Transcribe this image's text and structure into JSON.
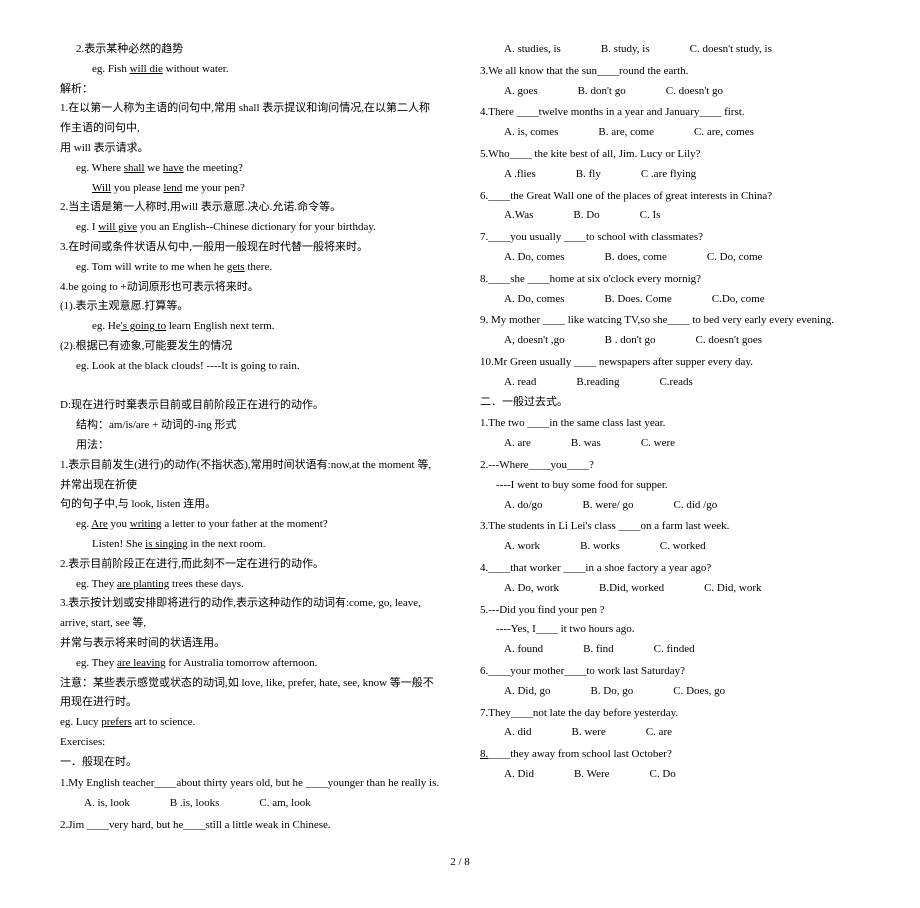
{
  "left": {
    "l1": "2.表示某种必然的趋势",
    "l2a": "eg. Fish ",
    "l2b": "will die",
    "l2c": " without water.",
    "l3": "解析：",
    "l4": "1.在以第一人称为主语的问句中,常用 shall 表示提议和询问情况,在以第二人称作主语的问句中,",
    "l5": "用 will 表示请求。",
    "l6a": "eg. Where ",
    "l6b": "shall",
    "l6c": " we ",
    "l6d": "have",
    "l6e": " the meeting?",
    "l7a": "Will",
    "l7b": " you please ",
    "l7c": "lend",
    "l7d": " me your pen?",
    "l8": "2.当主语是第一人称时,用will 表示意愿.决心.允诺.命令等。",
    "l9a": "eg. I ",
    "l9b": "will give",
    "l9c": " you an English--Chinese dictionary for your birthday.",
    "l10": "3.在时间或条件状语从句中,一般用一般现在时代替一般将来时。",
    "l11a": "eg. Tom will write to me when he ",
    "l11b": "gets",
    "l11c": " there.",
    "l12": "4.be going to +动词原形也可表示将来时。",
    "l13": "(1).表示主观意愿.打算等。",
    "l14a": "eg. He",
    "l14b": "'s going to",
    "l14c": " learn English next term.",
    "l15": "(2).根据已有迹象,可能要发生的情况",
    "l16": "eg. Look at the black clouds!    ----It is going to rain.",
    "l17": "D:现在进行时棄表示目前或目前阶段正在进行的动作。",
    "l18": "结构：am/is/are + 动词的-ing 形式",
    "l19": "用法：",
    "l20": "1.表示目前发生(进行)的动作(不指状态),常用时间状语有:now,at the moment 等,并常出现在祈使",
    "l21": "句的句子中,与 look, listen 连用。",
    "l22a": "eg. ",
    "l22b": "Are",
    "l22c": " you ",
    "l22d": "writing",
    "l22e": " a letter to your father at the moment?",
    "l23a": "Listen! She ",
    "l23b": "is singing",
    "l23c": " in the next room.",
    "l24": "2.表示目前阶段正在进行,而此刻不一定在进行的动作。",
    "l25a": "eg. They ",
    "l25b": "are planting",
    "l25c": " trees these days.",
    "l26": "3.表示按计划或安排即将进行的动作,表示这种动作的动词有:come, go, leave, arrive, start, see 等,",
    "l27": "并常与表示将来时间的状语连用。",
    "l28a": "eg. They ",
    "l28b": "are leaving",
    "l28c": " for Australia tomorrow afternoon.",
    "l29": "注意：某些表示感觉或状态的动词,如 love, like, prefer, hate, see, know 等一般不用现在进行时。",
    "l30a": "eg. Lucy ",
    "l30b": "prefers",
    "l30c": " art to science.",
    "l31": "Exercises:",
    "l32": "一．般现在时。",
    "q1": "1.My English teacher____about thirty years old, but he ____younger than he really is.",
    "q1a": "A. is, look",
    "q1b": "B .is, looks",
    "q1c": "C. am, look",
    "q2": "2.Jim ____very hard, but he____still a little weak in Chinese."
  },
  "right": {
    "q2a": "A. studies, is",
    "q2b": "B. study, is",
    "q2c": "C. doesn't study, is",
    "q3": "3.We all know that the sun____round the earth.",
    "q3a": "A. goes",
    "q3b": "B. don't go",
    "q3c": "C. doesn't go",
    "q4": "4.There ____twelve months in a year and January____ first.",
    "q4a": "A. is, comes",
    "q4b": "B. are, come",
    "q4c": "C. are, comes",
    "q5": "5.Who____ the kite best of all, Jim. Lucy or Lily?",
    "q5a": "A .flies",
    "q5b": "B. fly",
    "q5c": "C .are flying",
    "q6": "6.____the Great Wall one of the places of great interests in China?",
    "q6a": "A.Was",
    "q6b": "B. Do",
    "q6c": "C. Is",
    "q7": "7.____you usually ____to school with classmates?",
    "q7a": "A. Do, comes",
    "q7b": "B. does, come",
    "q7c": "C. Do, come",
    "q8": "8.____she ____home at six o'clock every mornig?",
    "q8a": "A. Do, comes",
    "q8b": "B. Does. Come",
    "q8c": "C.Do, come",
    "q9": "9. My mother ____ like watcing TV,so she____ to bed very early every evening.",
    "q9a": "A, doesn't ,go",
    "q9b": "B . don't go",
    "q9c": "C. doesn't goes",
    "q10": "10.Mr Green usually ____ newspapers after supper every day.",
    "q10a": "A. read",
    "q10b": "B.reading",
    "q10c": "C.reads",
    "sec2": "二．一般过去式。",
    "r1": "1.The two ____in the same class last year.",
    "r1a": "A. are",
    "r1b": "B. was",
    "r1c": "C. were",
    "r2": "2.---Where____you____?",
    "r2s": "----I went to buy some food for supper.",
    "r2a": "A. do/go",
    "r2b": "B. were/ go",
    "r2c": "C. did /go",
    "r3": "3.The students in Li Lei's class ____on a farm last week.",
    "r3a": "A. work",
    "r3b": "B. works",
    "r3c": "C. worked",
    "r4": "4.____that worker ____in a shoe factory a year ago?",
    "r4a": "A. Do, work",
    "r4b": "B.Did, worked",
    "r4c": "C. Did, work",
    "r5": "5.---Did you find your pen ?",
    "r5s": "----Yes, I____ it two hours ago.",
    "r5a": "A. found",
    "r5b": "B. find",
    "r5c": "C. finded",
    "r6": "6.____your mother____to work last Saturday?",
    "r6a": "A. Did, go",
    "r6b": "B. Do, go",
    "r6c": "C. Does, go",
    "r7": "7.They____not late the day before yesterday.",
    "r7a": "A. did",
    "r7b": "B. were",
    "r7c": "C. are",
    "r8a": "8.",
    "r8b": "____they away from school last October?",
    "r8oa": "A. Did",
    "r8ob": "B. Were",
    "r8oc": "C. Do"
  },
  "footer": "2 / 8"
}
